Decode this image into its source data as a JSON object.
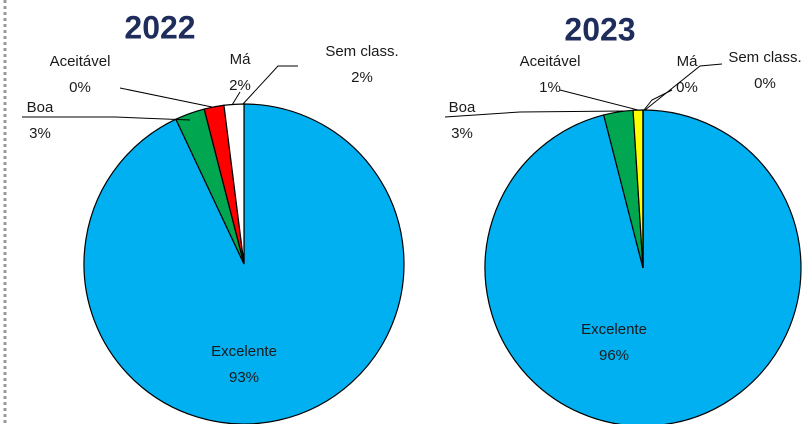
{
  "chart_data": [
    {
      "type": "pie",
      "title": "2022",
      "categories": [
        "Excelente",
        "Boa",
        "Aceitável",
        "Má",
        "Sem class."
      ],
      "values": [
        93,
        3,
        0,
        2,
        2
      ],
      "value_labels": [
        "93%",
        "3%",
        "0%",
        "2%",
        "2%"
      ],
      "colors": [
        "#00b0f0",
        "#00a650",
        "#ffff00",
        "#ff0000",
        "#ffffff"
      ]
    },
    {
      "type": "pie",
      "title": "2023",
      "categories": [
        "Excelente",
        "Boa",
        "Aceitável",
        "Má",
        "Sem class."
      ],
      "values": [
        96,
        3,
        1,
        0,
        0
      ],
      "value_labels": [
        "96%",
        "3%",
        "1%",
        "0%",
        "0%"
      ],
      "colors": [
        "#00b0f0",
        "#00a650",
        "#ffff00",
        "#ff0000",
        "#ffffff"
      ]
    }
  ]
}
